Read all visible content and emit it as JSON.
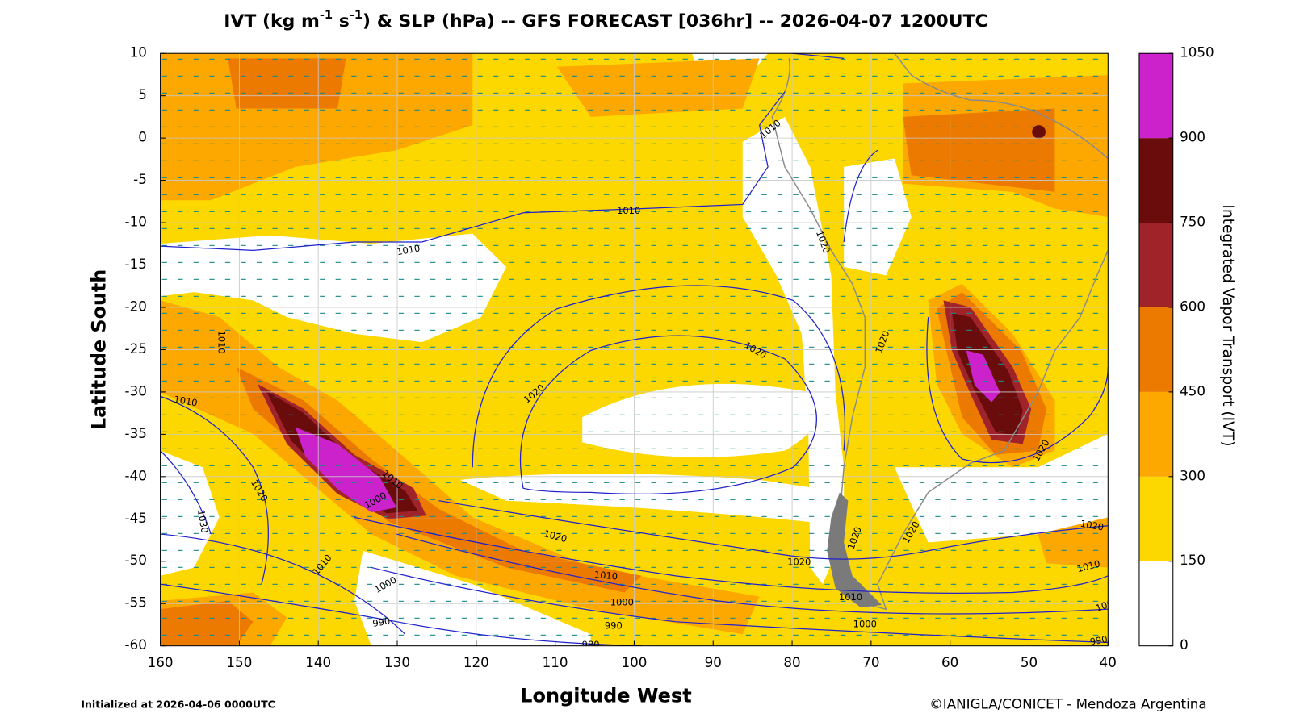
{
  "title": {
    "parts": [
      "IVT (kg m",
      "-1",
      " s",
      "-1",
      ") & SLP (hPa) -- GFS FORECAST [036hr] -- 2026-04-07 1200UTC"
    ]
  },
  "map": {
    "xlabel": "Longitude West",
    "ylabel": "Latitude South",
    "xlim": [
      160,
      40
    ],
    "ylim": [
      -60,
      10
    ],
    "xticks": [
      160,
      150,
      140,
      130,
      120,
      110,
      100,
      90,
      80,
      70,
      60,
      50,
      40
    ],
    "yticks": [
      10,
      5,
      0,
      -5,
      -10,
      -15,
      -20,
      -25,
      -30,
      -35,
      -40,
      -45,
      -50,
      -55,
      -60
    ],
    "grid": true,
    "contour_labels": [
      1010,
      1010,
      1010,
      1010,
      1010,
      1020,
      1030,
      1010,
      1000,
      990,
      1020,
      1010,
      1000,
      990,
      980,
      1020,
      1020,
      1020,
      1020,
      1020,
      1020,
      1020,
      1010,
      1000,
      1020,
      1020,
      1010,
      1000,
      990,
      1010,
      1000
    ]
  },
  "colorbar": {
    "label": "Integrated Vapor Transport (IVT)",
    "levels": [
      0,
      150,
      300,
      450,
      600,
      750,
      900,
      1050
    ],
    "colors": [
      "#ffffff",
      "#fcd800",
      "#fca800",
      "#ec7a00",
      "#a0232a",
      "#6a0c0c",
      "#cc22cc"
    ]
  },
  "footer": {
    "left": "Initialized at 2026-04-06 0000UTC",
    "right": "©IANIGLA/CONICET - Mendoza Argentina"
  }
}
